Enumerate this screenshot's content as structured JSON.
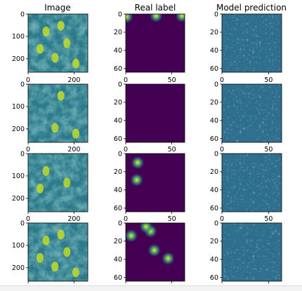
{
  "columns": [
    "Image",
    "Real label",
    "Model prediction"
  ],
  "rows": [
    {
      "image": {
        "y_ticks": [
          "0",
          "100",
          "200"
        ],
        "x_ticks": []
      },
      "label": {
        "y_ticks": [
          "0",
          "20",
          "40",
          "60"
        ],
        "x_ticks": [],
        "blobs": [
          [
            1,
            3
          ],
          [
            33,
            2
          ],
          [
            61,
            2
          ]
        ]
      },
      "prediction": {
        "y_ticks": [
          "0",
          "20",
          "40",
          "60"
        ],
        "x_ticks": []
      }
    },
    {
      "image": {
        "y_ticks": [
          "0",
          "100",
          "200"
        ],
        "x_ticks": [
          "0",
          "200"
        ]
      },
      "label": {
        "y_ticks": [
          "0",
          "20",
          "40",
          "60"
        ],
        "x_ticks": [
          "0",
          "50"
        ],
        "blobs": []
      },
      "prediction": {
        "y_ticks": [
          "0",
          "20",
          "40",
          "60"
        ],
        "x_ticks": [
          "0",
          "50"
        ]
      }
    },
    {
      "image": {
        "y_ticks": [
          "0",
          "100",
          "200"
        ],
        "x_ticks": [
          "0",
          "200"
        ]
      },
      "label": {
        "y_ticks": [
          "0",
          "20",
          "40",
          "60"
        ],
        "x_ticks": [
          "0",
          "50"
        ],
        "blobs": [
          [
            13,
            10
          ],
          [
            12,
            29
          ]
        ]
      },
      "prediction": {
        "y_ticks": [
          "0",
          "20",
          "40",
          "60"
        ],
        "x_ticks": [
          "0",
          "50"
        ]
      }
    },
    {
      "image": {
        "y_ticks": [
          "0",
          "100",
          "200"
        ],
        "x_ticks": [
          "0",
          "200"
        ]
      },
      "label": {
        "y_ticks": [
          "0",
          "20",
          "40",
          "60"
        ],
        "x_ticks": [
          "0",
          "50"
        ],
        "blobs": [
          [
            6,
            14
          ],
          [
            27,
            9
          ],
          [
            31,
            30
          ],
          [
            46,
            39
          ],
          [
            22,
            4
          ]
        ]
      },
      "prediction": {
        "y_ticks": [
          "0",
          "20",
          "40",
          "60"
        ],
        "x_ticks": [
          "0",
          "50"
        ]
      }
    }
  ],
  "colors": {
    "viridis_dark": "#440154",
    "viridis_teal": "#21918c",
    "viridis_green": "#5ec962",
    "viridis_yellow": "#fde725"
  }
}
